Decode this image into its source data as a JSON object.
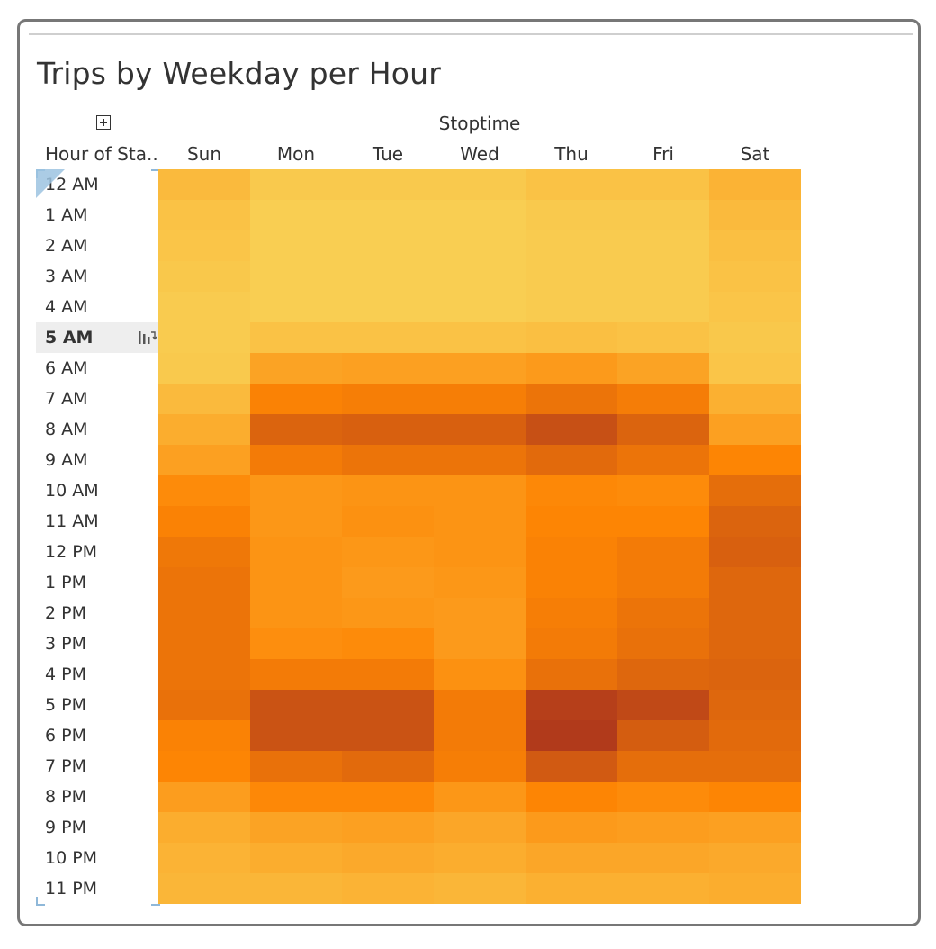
{
  "title": "Trips by Weekday per Hour",
  "column_group_label": "Stoptime",
  "row_field_label": "Hour of Sta..",
  "highlighted_row": "5 AM",
  "icons": {
    "expand": "plus-square-icon",
    "sort": "sort-bars-icon"
  },
  "chart_data": {
    "type": "heatmap",
    "title": "Trips by Weekday per Hour",
    "x_group_label": "Stoptime",
    "y_label": "Hour of Sta..",
    "columns": [
      "Sun",
      "Mon",
      "Tue",
      "Wed",
      "Thu",
      "Fri",
      "Sat"
    ],
    "rows": [
      "12 AM",
      "1 AM",
      "2 AM",
      "3 AM",
      "4 AM",
      "5 AM",
      "6 AM",
      "7 AM",
      "8 AM",
      "9 AM",
      "10 AM",
      "11 AM",
      "12 PM",
      "1 PM",
      "2 PM",
      "3 PM",
      "4 PM",
      "5 PM",
      "6 PM",
      "7 PM",
      "8 PM",
      "9 PM",
      "10 PM",
      "11 PM"
    ],
    "color_scale": {
      "low": "#f9d155",
      "mid": "#fd8504",
      "high": "#a8321e"
    },
    "values": [
      [
        0.15,
        0.05,
        0.05,
        0.05,
        0.1,
        0.1,
        0.2
      ],
      [
        0.1,
        0.02,
        0.02,
        0.02,
        0.05,
        0.05,
        0.15
      ],
      [
        0.08,
        0.02,
        0.02,
        0.02,
        0.04,
        0.04,
        0.12
      ],
      [
        0.06,
        0.02,
        0.02,
        0.02,
        0.04,
        0.04,
        0.1
      ],
      [
        0.04,
        0.02,
        0.02,
        0.02,
        0.04,
        0.04,
        0.08
      ],
      [
        0.04,
        0.1,
        0.1,
        0.1,
        0.12,
        0.1,
        0.06
      ],
      [
        0.05,
        0.3,
        0.32,
        0.32,
        0.36,
        0.3,
        0.08
      ],
      [
        0.15,
        0.52,
        0.54,
        0.54,
        0.6,
        0.55,
        0.22
      ],
      [
        0.24,
        0.7,
        0.72,
        0.72,
        0.82,
        0.7,
        0.32
      ],
      [
        0.32,
        0.56,
        0.6,
        0.6,
        0.66,
        0.6,
        0.5
      ],
      [
        0.46,
        0.38,
        0.4,
        0.4,
        0.48,
        0.46,
        0.64
      ],
      [
        0.52,
        0.38,
        0.42,
        0.4,
        0.5,
        0.5,
        0.7
      ],
      [
        0.58,
        0.4,
        0.38,
        0.4,
        0.52,
        0.56,
        0.72
      ],
      [
        0.6,
        0.4,
        0.36,
        0.38,
        0.52,
        0.56,
        0.68
      ],
      [
        0.6,
        0.4,
        0.38,
        0.36,
        0.54,
        0.6,
        0.68
      ],
      [
        0.6,
        0.44,
        0.46,
        0.36,
        0.56,
        0.62,
        0.68
      ],
      [
        0.6,
        0.56,
        0.56,
        0.42,
        0.62,
        0.68,
        0.7
      ],
      [
        0.62,
        0.8,
        0.8,
        0.56,
        0.92,
        0.86,
        0.68
      ],
      [
        0.52,
        0.8,
        0.8,
        0.56,
        0.95,
        0.74,
        0.66
      ],
      [
        0.5,
        0.62,
        0.66,
        0.54,
        0.76,
        0.64,
        0.64
      ],
      [
        0.34,
        0.48,
        0.48,
        0.38,
        0.5,
        0.46,
        0.5
      ],
      [
        0.24,
        0.3,
        0.32,
        0.28,
        0.36,
        0.34,
        0.32
      ],
      [
        0.2,
        0.24,
        0.26,
        0.24,
        0.28,
        0.28,
        0.26
      ],
      [
        0.18,
        0.18,
        0.2,
        0.18,
        0.22,
        0.22,
        0.24
      ]
    ]
  }
}
